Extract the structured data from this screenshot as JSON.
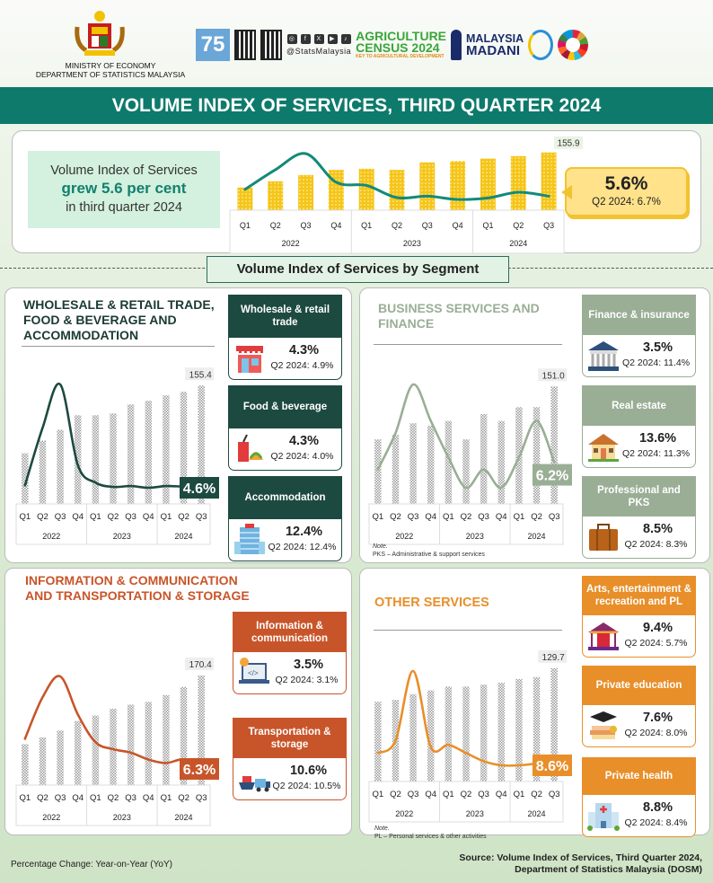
{
  "header": {
    "ministry_line1": "MINISTRY OF ECONOMY",
    "ministry_line2": "DEPARTMENT OF STATISTICS MALAYSIA",
    "social_handle": "@StatsMalaysia",
    "social_icons": [
      "instagram-icon",
      "facebook-icon",
      "x-icon",
      "youtube-icon",
      "tiktok-icon"
    ],
    "logo_75": "75",
    "agri_logo_line1": "AGRICULTURE",
    "agri_logo_line2": "CENSUS 2024",
    "agri_logo_tagline": "KEY TO AGRICULTURAL DEVELOPMENT",
    "madani_line1": "MALAYSIA",
    "madani_line2": "MADANI"
  },
  "title": "VOLUME INDEX OF SERVICES, THIRD QUARTER 2024",
  "summary": {
    "line1": "Volume Index of Services",
    "line2": "grew 5.6 per cent",
    "line3": "in third quarter 2024",
    "growth": "5.6%",
    "previous": "Q2 2024:  6.7%"
  },
  "segment_heading": "Volume Index of Services by Segment",
  "colors": {
    "teal": "#0e7a6b",
    "wholesale": "#1d4a40",
    "business": "#9aae96",
    "ict": "#c8552a",
    "other": "#e88f2a",
    "bars_main": "#f5c518"
  },
  "panels": [
    {
      "title": "WHOLESALE & RETAIL TRADE, FOOD & BEVERAGE AND ACCOMMODATION",
      "cards": [
        {
          "label": "Wholesale & retail trade",
          "growth": "4.3%",
          "previous": "Q2 2024: 4.9%",
          "icon": "shop-icon"
        },
        {
          "label": "Food & beverage",
          "growth": "4.3%",
          "previous": "Q2 2024: 4.0%",
          "icon": "food-drink-icon"
        },
        {
          "label": "Accommodation",
          "growth": "12.4%",
          "previous": "Q2 2024: 12.4%",
          "icon": "hotel-icon"
        }
      ]
    },
    {
      "title": "BUSINESS SERVICES AND FINANCE",
      "note_title": "Note.",
      "note": "PKS – Administrative & support services",
      "cards": [
        {
          "label": "Finance & insurance",
          "growth": "3.5%",
          "previous": "Q2 2024: 11.4%",
          "icon": "bank-icon"
        },
        {
          "label": "Real estate",
          "growth": "13.6%",
          "previous": "Q2 2024: 11.3%",
          "icon": "house-icon"
        },
        {
          "label": "Professional and PKS",
          "growth": "8.5%",
          "previous": "Q2 2024: 8.3%",
          "icon": "briefcase-icon"
        }
      ]
    },
    {
      "title": "INFORMATION & COMMUNICATION AND TRANSPORTATION & STORAGE",
      "cards": [
        {
          "label": "Information & communication",
          "growth": "3.5%",
          "previous": "Q2 2024: 3.1%",
          "icon": "laptop-code-icon"
        },
        {
          "label": "Transportation & storage",
          "growth": "10.6%",
          "previous": "Q2 2024: 10.5%",
          "icon": "ship-truck-icon"
        }
      ]
    },
    {
      "title": "OTHER SERVICES",
      "note_title": "Note.",
      "note": "PL – Personal services & other activities",
      "cards": [
        {
          "label": "Arts, entertainment & recreation and PL",
          "growth": "9.4%",
          "previous": "Q2 2024: 5.7%",
          "icon": "carousel-icon"
        },
        {
          "label": "Private education",
          "growth": "7.6%",
          "previous": "Q2 2024: 8.0%",
          "icon": "graduation-books-icon"
        },
        {
          "label": "Private health",
          "growth": "8.8%",
          "previous": "Q2 2024: 8.4%",
          "icon": "hospital-icon"
        }
      ]
    }
  ],
  "footer": {
    "left": "Percentage Change: Year-on-Year (YoY)",
    "source_line1": "Source: Volume Index of Services, Third Quarter 2024,",
    "source_line2": "Department of Statistics Malaysia (DOSM)"
  },
  "chart_data": [
    {
      "id": "overall",
      "type": "bar+line",
      "categories": [
        "Q1",
        "Q2",
        "Q3",
        "Q4",
        "Q1",
        "Q2",
        "Q3",
        "Q4",
        "Q1",
        "Q2",
        "Q3"
      ],
      "years": [
        {
          "label": "2022",
          "span": 4
        },
        {
          "label": "2023",
          "span": 4
        },
        {
          "label": "2024",
          "span": 3
        }
      ],
      "bar_values": [
        128,
        133,
        138,
        142,
        143,
        142,
        148,
        149,
        151,
        153,
        155.9
      ],
      "bar_ylim": [
        110,
        160
      ],
      "bar_last_label": "155.9",
      "line_values": [
        7.5,
        13,
        17.5,
        9.5,
        8.6,
        5.2,
        5.6,
        4.7,
        5.1,
        6.7,
        5.6
      ],
      "line_last_label": "5.6%",
      "line_color": "#138a78",
      "bar_color": "#f5c518"
    },
    {
      "id": "wholesale",
      "type": "bar+line",
      "categories": [
        "Q1",
        "Q2",
        "Q3",
        "Q4",
        "Q1",
        "Q2",
        "Q3",
        "Q4",
        "Q1",
        "Q2",
        "Q3"
      ],
      "years": [
        {
          "label": "2022",
          "span": 4
        },
        {
          "label": "2023",
          "span": 4
        },
        {
          "label": "2024",
          "span": 3
        }
      ],
      "bar_values": [
        118,
        125,
        131,
        139,
        139,
        140,
        145,
        147,
        150,
        152,
        155.4
      ],
      "bar_ylim": [
        90,
        160
      ],
      "bar_last_label": "155.4",
      "line_values": [
        5,
        25,
        40,
        12,
        6,
        4.5,
        4.8,
        4.2,
        4.8,
        4.6,
        4.6
      ],
      "line_last_label": "4.6%",
      "line_color": "#1d4a40"
    },
    {
      "id": "business",
      "type": "bar+line",
      "categories": [
        "Q1",
        "Q2",
        "Q3",
        "Q4",
        "Q1",
        "Q2",
        "Q3",
        "Q4",
        "Q1",
        "Q2",
        "Q3"
      ],
      "years": [
        {
          "label": "2022",
          "span": 4
        },
        {
          "label": "2023",
          "span": 4
        },
        {
          "label": "2024",
          "span": 3
        }
      ],
      "bar_values": [
        128,
        130,
        135,
        134,
        136,
        128,
        139,
        136,
        142,
        142,
        151.0
      ],
      "bar_ylim": [
        100,
        155
      ],
      "bar_last_label": "151.0",
      "line_values": [
        5,
        11,
        19,
        13,
        7,
        2,
        5,
        2,
        7,
        13,
        6.2
      ],
      "line_last_label": "6.2%",
      "line_color": "#9aae96"
    },
    {
      "id": "ict",
      "type": "bar+line",
      "categories": [
        "Q1",
        "Q2",
        "Q3",
        "Q4",
        "Q1",
        "Q2",
        "Q3",
        "Q4",
        "Q1",
        "Q2",
        "Q3"
      ],
      "years": [
        {
          "label": "2022",
          "span": 4
        },
        {
          "label": "2023",
          "span": 4
        },
        {
          "label": "2024",
          "span": 3
        }
      ],
      "bar_values": [
        120,
        125,
        130,
        137,
        141,
        146,
        149,
        151,
        156,
        162,
        170.4
      ],
      "bar_ylim": [
        90,
        175
      ],
      "bar_last_label": "170.4",
      "line_values": [
        15,
        27,
        33,
        22,
        14,
        12,
        11,
        9,
        8,
        9,
        6.3
      ],
      "line_last_label": "6.3%",
      "line_color": "#c8552a"
    },
    {
      "id": "other",
      "type": "bar+line",
      "categories": [
        "Q1",
        "Q2",
        "Q3",
        "Q4",
        "Q1",
        "Q2",
        "Q3",
        "Q4",
        "Q1",
        "Q2",
        "Q3"
      ],
      "years": [
        {
          "label": "2022",
          "span": 4
        },
        {
          "label": "2023",
          "span": 4
        },
        {
          "label": "2024",
          "span": 3
        }
      ],
      "bar_values": [
        112,
        113,
        116,
        118,
        120,
        120,
        121,
        122,
        124,
        125,
        129.7
      ],
      "bar_ylim": [
        70,
        132
      ],
      "bar_last_label": "129.7",
      "line_values": [
        10,
        13,
        30,
        11.5,
        12,
        10,
        8,
        7,
        7,
        7.5,
        8.6
      ],
      "line_last_label": "8.6%",
      "line_color": "#e88f2a"
    }
  ]
}
